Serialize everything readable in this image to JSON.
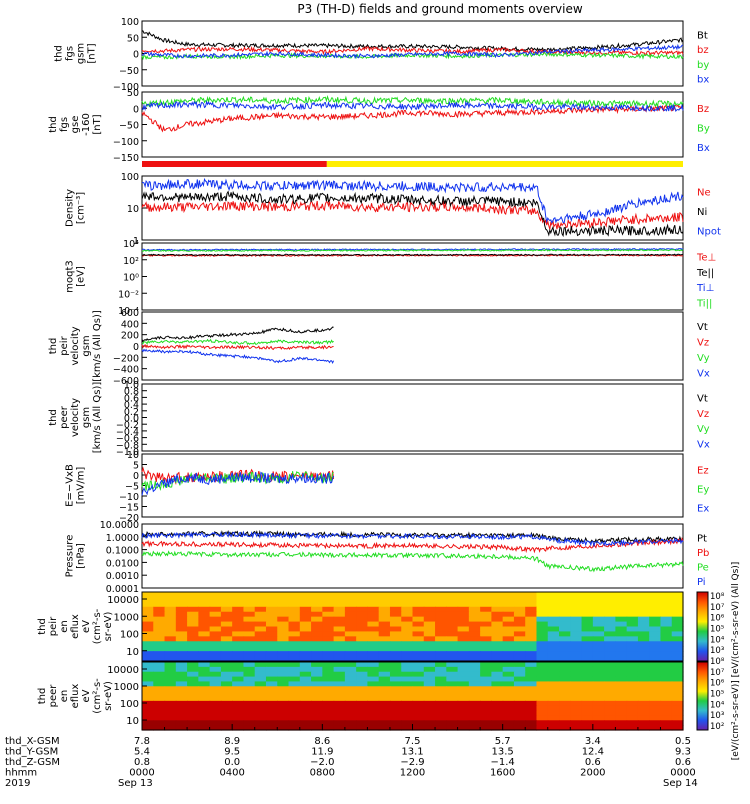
{
  "title": "P3 (TH-D) fields and ground moments overview",
  "colors": {
    "black": "#000000",
    "red": "#ee1111",
    "green": "#22dd22",
    "blue": "#1133ee",
    "mode_red": "#ee1111",
    "mode_yellow": "#ffee00"
  },
  "chart_data": [
    {
      "type": "line",
      "id": "fgs_gsm",
      "ylabel": [
        "thd",
        "fgs",
        "gsm",
        "[nT]"
      ],
      "ylim": [
        -100,
        100
      ],
      "yticks": [
        "100",
        "50",
        "0",
        "−50",
        "−100"
      ],
      "series": [
        {
          "name": "Bt",
          "color": "#000000",
          "x": [
            0,
            1,
            2,
            4,
            6,
            8,
            10,
            12,
            14,
            16,
            18,
            20,
            22,
            24
          ],
          "values": [
            70,
            40,
            28,
            25,
            25,
            24,
            22,
            22,
            20,
            15,
            12,
            18,
            28,
            42
          ]
        },
        {
          "name": "bz",
          "color": "#ee1111",
          "x": [
            0,
            1,
            2,
            4,
            6,
            8,
            10,
            12,
            14,
            16,
            18,
            20,
            22,
            24
          ],
          "values": [
            10,
            8,
            12,
            14,
            10,
            5,
            15,
            10,
            6,
            12,
            4,
            3,
            2,
            2
          ]
        },
        {
          "name": "by",
          "color": "#22dd22",
          "x": [
            0,
            1,
            2,
            4,
            6,
            8,
            10,
            12,
            14,
            16,
            18,
            20,
            22,
            24
          ],
          "values": [
            -10,
            -12,
            -8,
            -10,
            -6,
            -8,
            -10,
            -5,
            -8,
            -5,
            -2,
            -5,
            -8,
            -10
          ]
        },
        {
          "name": "bx",
          "color": "#1133ee",
          "x": [
            0,
            1,
            2,
            4,
            6,
            8,
            10,
            12,
            14,
            16,
            18,
            20,
            22,
            24
          ],
          "values": [
            0,
            -5,
            -8,
            -5,
            0,
            -5,
            -8,
            -3,
            0,
            -5,
            5,
            10,
            15,
            20
          ]
        }
      ]
    },
    {
      "type": "line",
      "id": "fgs_gse",
      "ylabel": [
        "thd",
        "fgs",
        "gse",
        "-160",
        "[nT]"
      ],
      "ylim": [
        -170,
        50
      ],
      "yticks": [
        "50",
        "0",
        "−50",
        "−100",
        "−150"
      ],
      "series": [
        {
          "name": "Bz",
          "color": "#ee1111",
          "x": [
            0,
            1,
            2,
            4,
            6,
            8,
            10,
            12,
            14,
            16,
            18,
            20,
            22,
            24
          ],
          "values": [
            -20,
            -80,
            -60,
            -40,
            -30,
            -35,
            -30,
            -20,
            -25,
            -20,
            -15,
            -10,
            -8,
            -5
          ]
        },
        {
          "name": "By",
          "color": "#22dd22",
          "x": [
            0,
            1,
            2,
            4,
            6,
            8,
            10,
            12,
            14,
            16,
            18,
            20,
            22,
            24
          ],
          "values": [
            10,
            15,
            20,
            25,
            20,
            25,
            20,
            22,
            20,
            22,
            15,
            12,
            10,
            10
          ]
        },
        {
          "name": "Bx",
          "color": "#1133ee",
          "x": [
            0,
            1,
            2,
            4,
            6,
            8,
            10,
            12,
            14,
            16,
            18,
            20,
            22,
            24
          ],
          "values": [
            0,
            5,
            8,
            5,
            0,
            5,
            2,
            0,
            5,
            2,
            0,
            -2,
            -3,
            -5
          ]
        }
      ]
    },
    {
      "type": "line",
      "id": "density",
      "ylabel": [
        "Density",
        "[cm⁻³]"
      ],
      "scale": "log",
      "ylim": [
        0.1,
        200
      ],
      "yticks": [
        "100",
        "10",
        "1"
      ],
      "series": [
        {
          "name": "Ne",
          "color": "#ee1111",
          "x": [
            0,
            2,
            4,
            6,
            8,
            10,
            12,
            14,
            16,
            17.5,
            18,
            20,
            22,
            24
          ],
          "values": [
            5,
            5,
            6,
            5,
            6,
            5,
            5,
            5,
            4,
            3,
            0.6,
            0.8,
            1.2,
            1.5
          ]
        },
        {
          "name": "Ni",
          "color": "#000000",
          "x": [
            0,
            2,
            4,
            6,
            8,
            10,
            12,
            14,
            16,
            17.5,
            18,
            20,
            22,
            24
          ],
          "values": [
            20,
            15,
            18,
            12,
            15,
            14,
            12,
            10,
            10,
            8,
            0.3,
            0.3,
            0.3,
            0.35
          ]
        },
        {
          "name": "Npot",
          "color": "#1133ee",
          "x": [
            0,
            2,
            4,
            6,
            8,
            10,
            12,
            14,
            16,
            17.5,
            18,
            20,
            22,
            24
          ],
          "values": [
            60,
            80,
            70,
            60,
            70,
            60,
            60,
            50,
            55,
            50,
            1,
            2,
            8,
            20
          ]
        }
      ]
    },
    {
      "type": "line",
      "id": "temperature",
      "ylabel": [
        "moqt3",
        "[eV]"
      ],
      "scale": "log",
      "ylim": [
        1e-05,
        10000
      ],
      "yticks": [
        "10⁴",
        "10²",
        "10⁰",
        "10⁻²",
        "10⁻⁴"
      ],
      "series": [
        {
          "name": "Te⊥",
          "color": "#ee1111",
          "x": [
            0,
            24
          ],
          "values": [
            200,
            220
          ]
        },
        {
          "name": "Te||",
          "color": "#000000",
          "x": [
            0,
            24
          ],
          "values": [
            250,
            260
          ]
        },
        {
          "name": "Ti⊥",
          "color": "#1133ee",
          "x": [
            0,
            24
          ],
          "values": [
            1200,
            1500
          ]
        },
        {
          "name": "Ti||",
          "color": "#22dd22",
          "x": [
            0,
            24
          ],
          "values": [
            900,
            1100
          ]
        }
      ]
    },
    {
      "type": "line",
      "id": "peir_velocity",
      "ylabel": [
        "thd",
        "peir",
        "velocity",
        "gsm",
        "[km/s (All Qs)]"
      ],
      "ylim": [
        -600,
        600
      ],
      "yticks": [
        "600",
        "400",
        "200",
        "0",
        "−200",
        "−400",
        "−600"
      ],
      "series": [
        {
          "name": "Vt",
          "color": "#000000",
          "x": [
            0,
            1,
            2,
            3,
            4,
            5,
            6,
            7,
            8,
            8.5
          ],
          "values": [
            100,
            150,
            150,
            180,
            200,
            220,
            300,
            250,
            280,
            320
          ]
        },
        {
          "name": "Vz",
          "color": "#ee1111",
          "x": [
            0,
            1,
            2,
            3,
            4,
            5,
            6,
            7,
            8,
            8.5
          ],
          "values": [
            0,
            -20,
            -10,
            -30,
            -20,
            -20,
            -40,
            -30,
            -20,
            -20
          ]
        },
        {
          "name": "Vy",
          "color": "#22dd22",
          "x": [
            0,
            1,
            2,
            3,
            4,
            5,
            6,
            7,
            8,
            8.5
          ],
          "values": [
            60,
            80,
            70,
            90,
            60,
            50,
            80,
            70,
            60,
            80
          ]
        },
        {
          "name": "Vx",
          "color": "#1133ee",
          "x": [
            0,
            1,
            2,
            3,
            4,
            5,
            6,
            7,
            8,
            8.5
          ],
          "values": [
            -80,
            -100,
            -100,
            -150,
            -180,
            -200,
            -280,
            -220,
            -250,
            -280
          ]
        }
      ]
    },
    {
      "type": "line",
      "id": "peer_velocity",
      "ylabel": [
        "thd",
        "peer",
        "velocity",
        "gsm",
        "[km/s (All Qs)]"
      ],
      "ylim": [
        -1,
        1
      ],
      "yticks": [
        "1.0",
        "0.8",
        "0.6",
        "0.4",
        "0.2",
        "0.0",
        "−0.2",
        "−0.4",
        "−0.6",
        "−0.8",
        "−1.0"
      ],
      "series": [
        {
          "name": "Vt",
          "color": "#000000",
          "x": [],
          "values": []
        },
        {
          "name": "Vz",
          "color": "#ee1111",
          "x": [],
          "values": []
        },
        {
          "name": "Vy",
          "color": "#22dd22",
          "x": [],
          "values": []
        },
        {
          "name": "Vx",
          "color": "#1133ee",
          "x": [],
          "values": []
        }
      ]
    },
    {
      "type": "line",
      "id": "efield",
      "ylabel": [
        "E=−VxB",
        "[mV/m]"
      ],
      "ylim": [
        -20,
        10
      ],
      "yticks": [
        "10",
        "5",
        "0",
        "−5",
        "−10",
        "−15",
        "−20"
      ],
      "series": [
        {
          "name": "Ez",
          "color": "#ee1111",
          "x": [
            0,
            1,
            2,
            3,
            4,
            5,
            6,
            7,
            8,
            8.5
          ],
          "values": [
            1,
            -2,
            -1,
            -1,
            0,
            0,
            -1,
            0,
            -1,
            0
          ]
        },
        {
          "name": "Ey",
          "color": "#22dd22",
          "x": [
            0,
            1,
            2,
            3,
            4,
            5,
            6,
            7,
            8,
            8.5
          ],
          "values": [
            -6,
            -4,
            -2,
            -1,
            -2,
            -1,
            -2,
            0,
            -2,
            -1
          ]
        },
        {
          "name": "Ex",
          "color": "#1133ee",
          "x": [
            0,
            1,
            2,
            3,
            4,
            5,
            6,
            7,
            8,
            8.5
          ],
          "values": [
            -8,
            -4,
            -1,
            -2,
            -1,
            -1,
            -2,
            -1,
            -2,
            -1
          ]
        }
      ]
    },
    {
      "type": "line",
      "id": "pressure",
      "ylabel": [
        "Pressure",
        "[nPa]"
      ],
      "scale": "log",
      "ylim": [
        0.0001,
        10
      ],
      "yticks": [
        "10.0000",
        "1.0000",
        "0.1000",
        "0.0100",
        "0.0010",
        "0.0001"
      ],
      "series": [
        {
          "name": "Pt",
          "color": "#000000",
          "x": [
            0,
            4,
            8,
            12,
            16,
            17.5,
            18,
            20,
            22,
            24
          ],
          "values": [
            1.5,
            1.8,
            1.5,
            1.4,
            1.3,
            1.3,
            0.8,
            0.5,
            0.6,
            0.7
          ]
        },
        {
          "name": "Pb",
          "color": "#ee1111",
          "x": [
            0,
            4,
            8,
            12,
            16,
            17.5,
            18,
            20,
            22,
            24
          ],
          "values": [
            0.3,
            0.25,
            0.2,
            0.2,
            0.15,
            0.1,
            0.12,
            0.2,
            0.3,
            0.5
          ]
        },
        {
          "name": "Pe",
          "color": "#22dd22",
          "x": [
            0,
            4,
            8,
            12,
            16,
            17.5,
            18,
            20,
            22,
            24
          ],
          "values": [
            0.05,
            0.04,
            0.04,
            0.035,
            0.03,
            0.02,
            0.005,
            0.003,
            0.005,
            0.008
          ]
        },
        {
          "name": "Pi",
          "color": "#1133ee",
          "x": [
            0,
            4,
            8,
            12,
            16,
            17.5,
            18,
            20,
            22,
            24
          ],
          "values": [
            1.2,
            1.5,
            1.2,
            1.1,
            1,
            1,
            0.6,
            0.3,
            0.4,
            0.5
          ]
        }
      ]
    },
    {
      "type": "heatmap",
      "id": "peir_eflux",
      "ylabel": [
        "thd",
        "peir",
        "en",
        "eflux",
        "eV",
        "(cm²‑s‑",
        "sr‑eV)"
      ],
      "yticks": [
        "10000",
        "1000",
        "100",
        "10"
      ]
    },
    {
      "type": "heatmap",
      "id": "peer_eflux",
      "ylabel": [
        "thd",
        "peer",
        "en",
        "eflux",
        "eV",
        "(cm²‑s‑",
        "sr‑eV)"
      ],
      "yticks": [
        "10000",
        "1000",
        "100",
        "10"
      ]
    }
  ],
  "legends": [
    [
      "Bt",
      "bz",
      "by",
      "bx"
    ],
    [
      "Bz",
      "By",
      "Bx"
    ],
    [
      "Ne",
      "Ni",
      "Npot"
    ],
    [
      "Te⊥",
      "Te||",
      "Ti⊥",
      "Ti||"
    ],
    [
      "Vt",
      "Vz",
      "Vy",
      "Vx"
    ],
    [
      "Vt",
      "Vz",
      "Vy",
      "Vx"
    ],
    [
      "Ez",
      "Ey",
      "Ex"
    ],
    [
      "Pt",
      "Pb",
      "Pe",
      "Pi"
    ]
  ],
  "colorbar": {
    "ticks": [
      "10⁸",
      "10⁷",
      "10⁶",
      "10⁵",
      "10⁴",
      "10³",
      "10⁸",
      "10⁷",
      "10⁶",
      "10⁵",
      "10⁴",
      "10³",
      "10²"
    ],
    "label": "[eV/(cm²-s-sr-eV)]   [eV/(cm²-s-sr-eV) (All Qs)]"
  },
  "mode_bar": {
    "split_hour": 8.2
  },
  "x_axis": {
    "row_labels": [
      "thd_X-GSM",
      "thd_Y-GSM",
      "thd_Z-GSM",
      "hhmm",
      "2019"
    ],
    "columns": [
      [
        "7.8",
        "5.4",
        "0.8",
        "0000",
        "Sep 13"
      ],
      [
        "8.9",
        "9.5",
        "0.0",
        "0400",
        ""
      ],
      [
        "8.6",
        "11.9",
        "−2.0",
        "0800",
        ""
      ],
      [
        "7.5",
        "13.1",
        "−2.9",
        "1200",
        ""
      ],
      [
        "5.7",
        "13.5",
        "−1.4",
        "1600",
        ""
      ],
      [
        "3.4",
        "12.4",
        "0.6",
        "2000",
        ""
      ],
      [
        "0.5",
        "9.3",
        "0.6",
        "0000",
        "Sep 14"
      ]
    ]
  }
}
